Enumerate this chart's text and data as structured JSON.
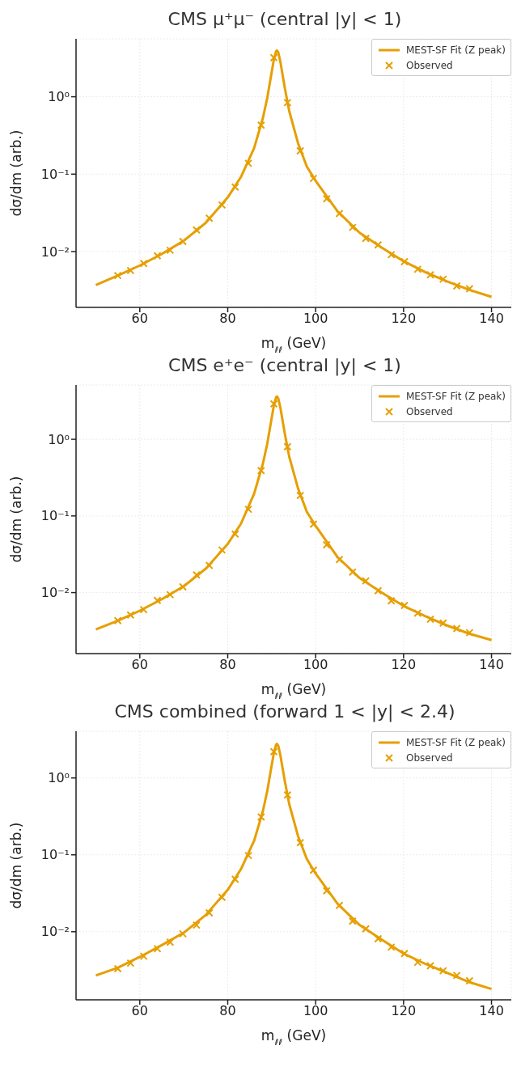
{
  "chart_data": [
    {
      "type": "line",
      "title": "CMS μ⁺μ⁻ (central |y| < 1)",
      "xlabel": "m$_{ℓℓ}$ (GeV)",
      "ylabel": "dσ/dm (arb.)",
      "log": "y",
      "grid": true,
      "legend": "top right",
      "xlim": [
        45.5,
        144.5
      ],
      "xticks": [
        60,
        80,
        100,
        120,
        140
      ],
      "ylim": [
        0.0019,
        5.6
      ],
      "yticks": [
        {
          "value": 0.01,
          "label": "10⁻²"
        },
        {
          "value": 0.1,
          "label": "10⁻¹"
        },
        {
          "value": 1,
          "label": "10⁰"
        }
      ],
      "series": [
        {
          "name": "MEST-SF Fit (Z peak)",
          "color": "#e69f00",
          "marker": "none",
          "x": [
            50,
            55,
            60,
            65,
            70,
            75,
            80,
            83,
            86,
            88,
            89,
            90,
            90.5,
            91,
            91.2,
            91.5,
            92,
            92.5,
            93,
            94,
            96,
            98,
            100,
            105,
            110,
            115,
            120,
            125,
            130,
            135,
            140
          ],
          "values": [
            0.0037,
            0.0049,
            0.0066,
            0.0093,
            0.0138,
            0.0235,
            0.05,
            0.092,
            0.217,
            0.53,
            0.97,
            2.08,
            3.03,
            3.87,
            3.96,
            3.73,
            2.79,
            1.89,
            1.28,
            0.65,
            0.25,
            0.125,
            0.082,
            0.033,
            0.0175,
            0.0113,
            0.0075,
            0.0054,
            0.0041,
            0.0032,
            0.0026
          ]
        },
        {
          "name": "Observed",
          "type": "scatter",
          "color": "#e69f00",
          "marker": "cross",
          "x": [
            55,
            57.9,
            60.9,
            64,
            66.9,
            69.8,
            72.9,
            75.8,
            78.7,
            81.7,
            84.7,
            87.6,
            90.5,
            93.6,
            96.5,
            99.5,
            102.5,
            105.4,
            108.4,
            111.4,
            114.2,
            117.2,
            120.2,
            123.2,
            126.1,
            129,
            132.1,
            135
          ],
          "values": [
            0.0049,
            0.0057,
            0.007,
            0.0088,
            0.0104,
            0.0135,
            0.019,
            0.027,
            0.04,
            0.068,
            0.138,
            0.43,
            3.2,
            0.84,
            0.2,
            0.088,
            0.048,
            0.031,
            0.0205,
            0.0148,
            0.0122,
            0.0091,
            0.0074,
            0.0059,
            0.005,
            0.0044,
            0.0036,
            0.0033
          ]
        }
      ]
    },
    {
      "type": "line",
      "title": "CMS e⁺e⁻ (central |y| < 1)",
      "xlabel": "m$_{ℓℓ}$ (GeV)",
      "ylabel": "dσ/dm (arb.)",
      "log": "y",
      "grid": true,
      "legend": "top right",
      "xlim": [
        45.5,
        144.5
      ],
      "xticks": [
        60,
        80,
        100,
        120,
        140
      ],
      "ylim": [
        0.0016,
        5.1
      ],
      "yticks": [
        {
          "value": 0.01,
          "label": "10⁻²"
        },
        {
          "value": 0.1,
          "label": "10⁻¹"
        },
        {
          "value": 1,
          "label": "10⁰"
        }
      ],
      "series": [
        {
          "name": "MEST-SF Fit (Z peak)",
          "color": "#e69f00",
          "marker": "none",
          "x": [
            50,
            55,
            60,
            65,
            70,
            75,
            80,
            83,
            86,
            88,
            89,
            90,
            90.5,
            91,
            91.2,
            91.5,
            92,
            92.5,
            93,
            94,
            96,
            98,
            100,
            105,
            110,
            115,
            120,
            125,
            130,
            135,
            140
          ],
          "values": [
            0.0033,
            0.0043,
            0.0058,
            0.0082,
            0.0121,
            0.0205,
            0.043,
            0.079,
            0.195,
            0.48,
            0.88,
            1.9,
            2.76,
            3.53,
            3.62,
            3.4,
            2.55,
            1.72,
            1.17,
            0.59,
            0.228,
            0.113,
            0.074,
            0.029,
            0.0155,
            0.01,
            0.0067,
            0.0049,
            0.0037,
            0.0029,
            0.0024
          ]
        },
        {
          "name": "Observed",
          "type": "scatter",
          "color": "#e69f00",
          "marker": "cross",
          "x": [
            55,
            57.9,
            60.9,
            64,
            66.9,
            69.8,
            72.9,
            75.8,
            78.7,
            81.7,
            84.7,
            87.6,
            90.5,
            93.6,
            96.5,
            99.5,
            102.5,
            105.4,
            108.4,
            111.4,
            114.2,
            117.2,
            120.2,
            123.2,
            126.1,
            129,
            132.1,
            135
          ],
          "values": [
            0.0043,
            0.0051,
            0.006,
            0.0079,
            0.0094,
            0.0119,
            0.017,
            0.0226,
            0.036,
            0.058,
            0.122,
            0.39,
            2.9,
            0.8,
            0.185,
            0.078,
            0.042,
            0.027,
            0.0185,
            0.0142,
            0.0106,
            0.0078,
            0.0068,
            0.0054,
            0.0045,
            0.004,
            0.0034,
            0.003
          ]
        }
      ]
    },
    {
      "type": "line",
      "title": "CMS combined (forward 1 < |y| < 2.4)",
      "xlabel": "m$_{ℓℓ}$ (GeV)",
      "ylabel": "dσ/dm (arb.)",
      "log": "y",
      "grid": true,
      "legend": "top right",
      "xlim": [
        45.5,
        144.5
      ],
      "xticks": [
        60,
        80,
        100,
        120,
        140
      ],
      "ylim": [
        0.0013,
        4.05
      ],
      "yticks": [
        {
          "value": 0.01,
          "label": "10⁻²"
        },
        {
          "value": 0.1,
          "label": "10⁻¹"
        },
        {
          "value": 1,
          "label": "10⁰"
        }
      ],
      "series": [
        {
          "name": "MEST-SF Fit (Z peak)",
          "color": "#e69f00",
          "marker": "none",
          "x": [
            50,
            55,
            60,
            65,
            70,
            75,
            80,
            83,
            86,
            88,
            89,
            90,
            90.5,
            91,
            91.2,
            91.5,
            92,
            92.5,
            93,
            94,
            96,
            98,
            100,
            105,
            110,
            115,
            120,
            125,
            130,
            135,
            140
          ],
          "values": [
            0.0027,
            0.0034,
            0.0047,
            0.0067,
            0.0097,
            0.0165,
            0.035,
            0.065,
            0.152,
            0.37,
            0.68,
            1.46,
            2.12,
            2.71,
            2.78,
            2.61,
            1.95,
            1.32,
            0.9,
            0.455,
            0.175,
            0.088,
            0.057,
            0.023,
            0.0122,
            0.0079,
            0.0052,
            0.0038,
            0.0029,
            0.0022,
            0.0018
          ]
        },
        {
          "name": "Observed",
          "type": "scatter",
          "color": "#e69f00",
          "marker": "cross",
          "x": [
            55,
            57.9,
            60.9,
            64,
            66.9,
            69.8,
            72.9,
            75.8,
            78.7,
            81.7,
            84.7,
            87.6,
            90.5,
            93.6,
            96.5,
            99.5,
            102.5,
            105.4,
            108.4,
            111.4,
            114.2,
            117.2,
            120.2,
            123.2,
            126.1,
            129,
            132.1,
            135
          ],
          "values": [
            0.0033,
            0.0039,
            0.0048,
            0.006,
            0.0073,
            0.0094,
            0.0122,
            0.0176,
            0.028,
            0.048,
            0.098,
            0.31,
            2.2,
            0.6,
            0.144,
            0.063,
            0.034,
            0.022,
            0.0137,
            0.0109,
            0.0081,
            0.0063,
            0.0052,
            0.004,
            0.0036,
            0.0031,
            0.0027,
            0.0023
          ]
        }
      ]
    }
  ]
}
